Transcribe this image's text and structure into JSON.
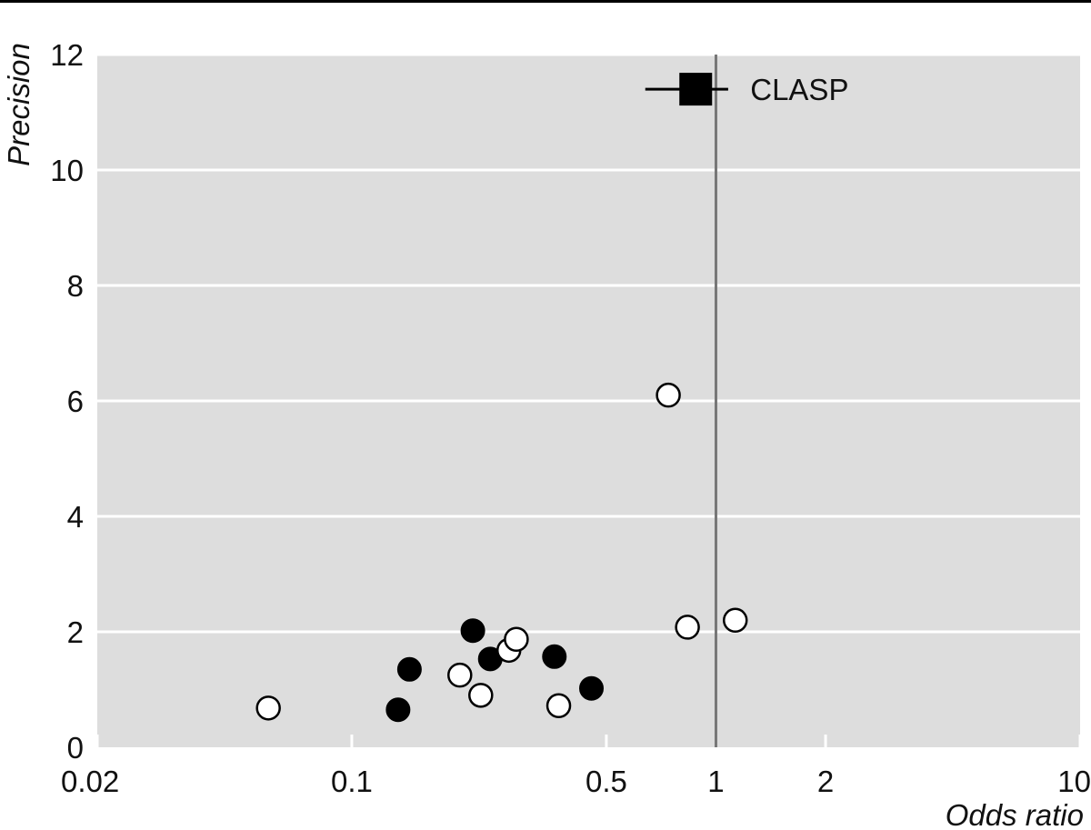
{
  "chart_data": {
    "type": "scatter",
    "title": "",
    "xlabel": "Odds ratio",
    "ylabel": "Precision",
    "x_scale": "log",
    "xlim": [
      0.02,
      10
    ],
    "ylim": [
      0,
      12
    ],
    "x_ticks": [
      0.02,
      0.1,
      0.5,
      1,
      2,
      10
    ],
    "x_tick_labels": [
      "0.02",
      "0.1",
      "0.5",
      "1",
      "2",
      "10"
    ],
    "y_ticks": [
      0,
      2,
      4,
      6,
      8,
      10,
      12
    ],
    "y_tick_labels": [
      "0",
      "2",
      "4",
      "6",
      "8",
      "10",
      "12"
    ],
    "grid": "horizontal",
    "reference_line_x": 1,
    "colors": {
      "panel": "#dddddd",
      "grid": "#ffffff",
      "reference": "#777777",
      "marker": "#000000"
    },
    "series": [
      {
        "marker": "filled-circle",
        "points": [
          {
            "x": 0.134,
            "y": 0.65
          },
          {
            "x": 0.144,
            "y": 1.35
          },
          {
            "x": 0.215,
            "y": 2.02
          },
          {
            "x": 0.24,
            "y": 1.53
          },
          {
            "x": 0.36,
            "y": 1.57
          },
          {
            "x": 0.455,
            "y": 1.02
          }
        ]
      },
      {
        "marker": "open-circle",
        "points": [
          {
            "x": 0.059,
            "y": 0.68
          },
          {
            "x": 0.198,
            "y": 1.25
          },
          {
            "x": 0.226,
            "y": 0.9
          },
          {
            "x": 0.27,
            "y": 1.68
          },
          {
            "x": 0.283,
            "y": 1.87
          },
          {
            "x": 0.37,
            "y": 0.72
          },
          {
            "x": 0.74,
            "y": 6.1
          },
          {
            "x": 0.835,
            "y": 2.08
          },
          {
            "x": 1.13,
            "y": 2.2
          }
        ]
      },
      {
        "marker": "filled-square",
        "label": "CLASP",
        "points": [
          {
            "x": 0.88,
            "y": 11.4,
            "ci": [
              0.76,
              1.02
            ]
          }
        ]
      }
    ]
  }
}
